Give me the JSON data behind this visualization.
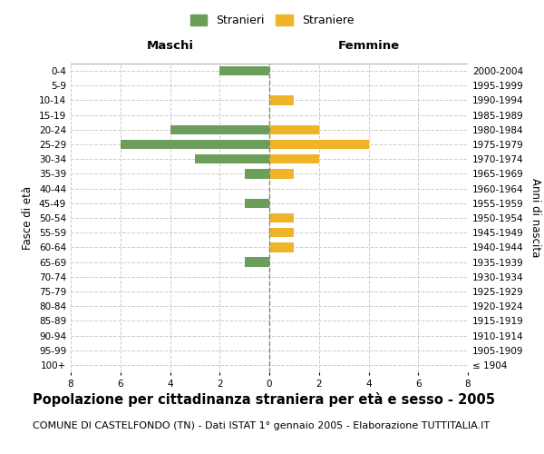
{
  "age_groups": [
    "100+",
    "95-99",
    "90-94",
    "85-89",
    "80-84",
    "75-79",
    "70-74",
    "65-69",
    "60-64",
    "55-59",
    "50-54",
    "45-49",
    "40-44",
    "35-39",
    "30-34",
    "25-29",
    "20-24",
    "15-19",
    "10-14",
    "5-9",
    "0-4"
  ],
  "birth_years": [
    "≤ 1904",
    "1905-1909",
    "1910-1914",
    "1915-1919",
    "1920-1924",
    "1925-1929",
    "1930-1934",
    "1935-1939",
    "1940-1944",
    "1945-1949",
    "1950-1954",
    "1955-1959",
    "1960-1964",
    "1965-1969",
    "1970-1974",
    "1975-1979",
    "1980-1984",
    "1985-1989",
    "1990-1994",
    "1995-1999",
    "2000-2004"
  ],
  "males": [
    0,
    0,
    0,
    0,
    0,
    0,
    0,
    1,
    0,
    0,
    0,
    1,
    0,
    1,
    3,
    6,
    4,
    0,
    0,
    0,
    2
  ],
  "females": [
    0,
    0,
    0,
    0,
    0,
    0,
    0,
    0,
    1,
    1,
    1,
    0,
    0,
    1,
    2,
    4,
    2,
    0,
    1,
    0,
    0
  ],
  "male_color": "#6a9e5a",
  "female_color": "#f0b429",
  "background_color": "#ffffff",
  "grid_color": "#cccccc",
  "center_line_color": "#8b8b6b",
  "xlim": 8,
  "title": "Popolazione per cittadinanza straniera per età e sesso - 2005",
  "subtitle": "COMUNE DI CASTELFONDO (TN) - Dati ISTAT 1° gennaio 2005 - Elaborazione TUTTITALIA.IT",
  "ylabel_left": "Fasce di età",
  "ylabel_right": "Anni di nascita",
  "header_left": "Maschi",
  "header_right": "Femmine",
  "legend_male": "Stranieri",
  "legend_female": "Straniere",
  "title_fontsize": 10.5,
  "subtitle_fontsize": 8,
  "label_fontsize": 8.5,
  "tick_fontsize": 7.5,
  "header_fontsize": 9.5
}
